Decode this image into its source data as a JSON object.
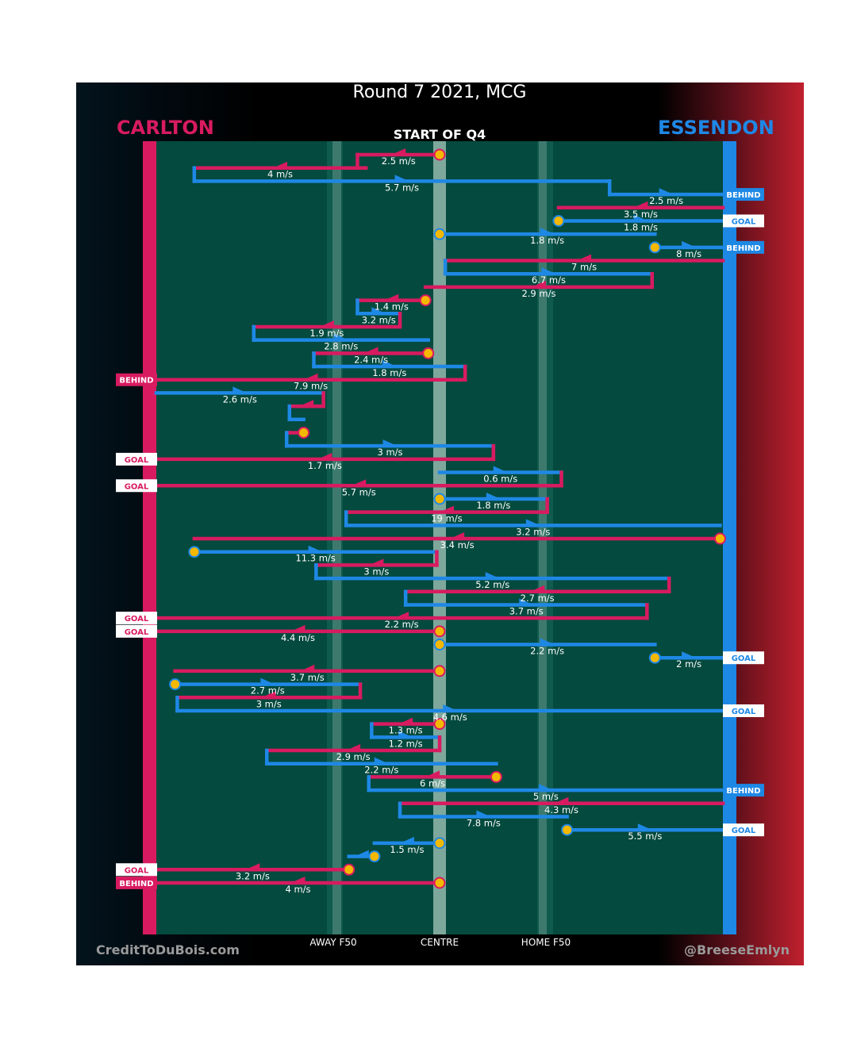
{
  "title": "Round 7 2021, MCG",
  "subtitle": "START OF Q4",
  "teams": {
    "left": "CARLTON",
    "right": "ESSENDON"
  },
  "colors": {
    "carlton": "#d81b60",
    "essendon": "#1e88e5",
    "field": "#044a3e",
    "marker": "#f5b800"
  },
  "axis_labels": [
    {
      "label": "AWAY F50",
      "x": 0.32
    },
    {
      "label": "CENTRE",
      "x": 0.5
    },
    {
      "label": "HOME F50",
      "x": 0.68
    }
  ],
  "credits": {
    "left": "CreditToDuBois.com",
    "right": "@BreeseEmlyn"
  },
  "chart_data": {
    "type": "line",
    "x_axis": "field position from Carlton end (0) to Essendon end (1)",
    "segments": [
      {
        "team": "C",
        "x1": 0.5,
        "x2": 0.355,
        "speed": "2.5 m/s",
        "from": "ball"
      },
      {
        "team": "C",
        "x1": 0.37,
        "x2": 0.067,
        "speed": "4 m/s"
      },
      {
        "team": "E",
        "x1": 0.067,
        "x2": 0.8,
        "speed": "5.7 m/s"
      },
      {
        "team": "E",
        "x1": 0.8,
        "x2": 1.0,
        "speed": "2.5 m/s",
        "to": "BEHIND"
      },
      {
        "team": "C",
        "x1": 1.0,
        "x2": 0.71,
        "speed": "3.5 m/s"
      },
      {
        "team": "E",
        "x1": 0.71,
        "x2": 1.0,
        "speed": "1.8 m/s",
        "from": "ball",
        "to": "GOAL"
      },
      {
        "team": "E",
        "x1": 0.5,
        "x2": 0.88,
        "speed": "1.8 m/s",
        "from": "ball"
      },
      {
        "team": "E",
        "x1": 0.88,
        "x2": 1.0,
        "speed": "8 m/s",
        "from": "ball",
        "to": "BEHIND"
      },
      {
        "team": "C",
        "x1": 1.0,
        "x2": 0.51,
        "speed": "7 m/s"
      },
      {
        "team": "E",
        "x1": 0.51,
        "x2": 0.875,
        "speed": "6.7 m/s"
      },
      {
        "team": "C",
        "x1": 0.875,
        "x2": 0.475,
        "speed": "2.9 m/s"
      },
      {
        "team": "C",
        "x1": 0.475,
        "x2": 0.355,
        "speed": "1.4 m/s",
        "from": "ball"
      },
      {
        "team": "E",
        "x1": 0.355,
        "x2": 0.43,
        "speed": "3.2 m/s"
      },
      {
        "team": "C",
        "x1": 0.43,
        "x2": 0.172,
        "speed": "1.9 m/s"
      },
      {
        "team": "E",
        "x1": 0.172,
        "x2": 0.48,
        "speed": "2.8 m/s"
      },
      {
        "team": "C",
        "x1": 0.48,
        "x2": 0.278,
        "speed": "2.4 m/s",
        "from": "ball"
      },
      {
        "team": "E",
        "x1": 0.278,
        "x2": 0.545,
        "speed": "1.8 m/s"
      },
      {
        "team": "C",
        "x1": 0.545,
        "x2": 0.0,
        "speed": "7.9 m/s",
        "to": "BEHIND"
      },
      {
        "team": "E",
        "x1": 0.0,
        "x2": 0.295,
        "speed": "2.6 m/s"
      },
      {
        "team": "C",
        "x1": 0.295,
        "x2": 0.235,
        "speed": ""
      },
      {
        "team": "E",
        "x1": 0.235,
        "x2": 0.26,
        "speed": ""
      },
      {
        "team": "C",
        "x1": 0.26,
        "x2": 0.23,
        "speed": "",
        "from": "ball"
      },
      {
        "team": "E",
        "x1": 0.23,
        "x2": 0.595,
        "speed": "3 m/s"
      },
      {
        "team": "C",
        "x1": 0.595,
        "x2": 0.0,
        "speed": "1.7 m/s",
        "to": "GOAL"
      },
      {
        "team": "E",
        "x1": 0.5,
        "x2": 0.715,
        "speed": "0.6 m/s"
      },
      {
        "team": "C",
        "x1": 0.715,
        "x2": 0.0,
        "speed": "5.7 m/s",
        "to": "GOAL"
      },
      {
        "team": "E",
        "x1": 0.5,
        "x2": 0.69,
        "speed": "1.8 m/s",
        "from": "ball"
      },
      {
        "team": "C",
        "x1": 0.69,
        "x2": 0.335,
        "speed": "19 m/s"
      },
      {
        "team": "E",
        "x1": 0.335,
        "x2": 0.995,
        "speed": "3.2 m/s"
      },
      {
        "team": "C",
        "x1": 0.995,
        "x2": 0.067,
        "speed": "3.4 m/s",
        "from": "ball"
      },
      {
        "team": "E",
        "x1": 0.067,
        "x2": 0.495,
        "speed": "11.3 m/s",
        "from": "ball"
      },
      {
        "team": "C",
        "x1": 0.495,
        "x2": 0.282,
        "speed": "3 m/s"
      },
      {
        "team": "E",
        "x1": 0.282,
        "x2": 0.905,
        "speed": "5.2 m/s"
      },
      {
        "team": "C",
        "x1": 0.905,
        "x2": 0.44,
        "speed": "2.7 m/s"
      },
      {
        "team": "E",
        "x1": 0.44,
        "x2": 0.866,
        "speed": "3.7 m/s"
      },
      {
        "team": "C",
        "x1": 0.866,
        "x2": 0.0,
        "speed": "2.2 m/s",
        "to": "GOAL"
      },
      {
        "team": "C",
        "x1": 0.5,
        "x2": 0.0,
        "speed": "4.4 m/s",
        "from": "ball",
        "to": "GOAL"
      },
      {
        "team": "E",
        "x1": 0.5,
        "x2": 0.88,
        "speed": "2.2 m/s",
        "from": "ball"
      },
      {
        "team": "E",
        "x1": 0.88,
        "x2": 1.0,
        "speed": "2 m/s",
        "from": "ball",
        "to": "GOAL"
      },
      {
        "team": "C",
        "x1": 0.5,
        "x2": 0.033,
        "speed": "3.7 m/s",
        "from": "ball"
      },
      {
        "team": "E",
        "x1": 0.033,
        "x2": 0.36,
        "speed": "2.7 m/s",
        "from": "ball"
      },
      {
        "team": "C",
        "x1": 0.36,
        "x2": 0.037,
        "speed": "3 m/s"
      },
      {
        "team": "E",
        "x1": 0.037,
        "x2": 1.0,
        "speed": "4.6 m/s",
        "to": "GOAL"
      },
      {
        "team": "C",
        "x1": 0.5,
        "x2": 0.38,
        "speed": "1.3 m/s",
        "from": "ball"
      },
      {
        "team": "E",
        "x1": 0.38,
        "x2": 0.5,
        "speed": "1.2 m/s"
      },
      {
        "team": "C",
        "x1": 0.5,
        "x2": 0.195,
        "speed": "2.9 m/s"
      },
      {
        "team": "E",
        "x1": 0.195,
        "x2": 0.6,
        "speed": "2.2 m/s"
      },
      {
        "team": "C",
        "x1": 0.6,
        "x2": 0.375,
        "speed": "6 m/s",
        "from": "ball"
      },
      {
        "team": "E",
        "x1": 0.375,
        "x2": 1.0,
        "speed": "5 m/s",
        "to": "BEHIND"
      },
      {
        "team": "C",
        "x1": 1.0,
        "x2": 0.43,
        "speed": "4.3 m/s"
      },
      {
        "team": "E",
        "x1": 0.43,
        "x2": 0.725,
        "speed": "7.8 m/s"
      },
      {
        "team": "E",
        "x1": 0.725,
        "x2": 1.0,
        "speed": "5.5 m/s",
        "from": "ball",
        "to": "GOAL"
      },
      {
        "team": "E",
        "x1": 0.5,
        "x2": 0.385,
        "speed": "1.5 m/s",
        "from": "ball"
      },
      {
        "team": "E",
        "x1": 0.385,
        "x2": 0.34,
        "speed": "",
        "from": "ball"
      },
      {
        "team": "C",
        "x1": 0.34,
        "x2": 0.0,
        "speed": "3.2 m/s",
        "from": "ball",
        "to": "GOAL"
      },
      {
        "team": "C",
        "x1": 0.5,
        "x2": 0.0,
        "speed": "4 m/s",
        "from": "ball",
        "to": "BEHIND"
      }
    ]
  }
}
